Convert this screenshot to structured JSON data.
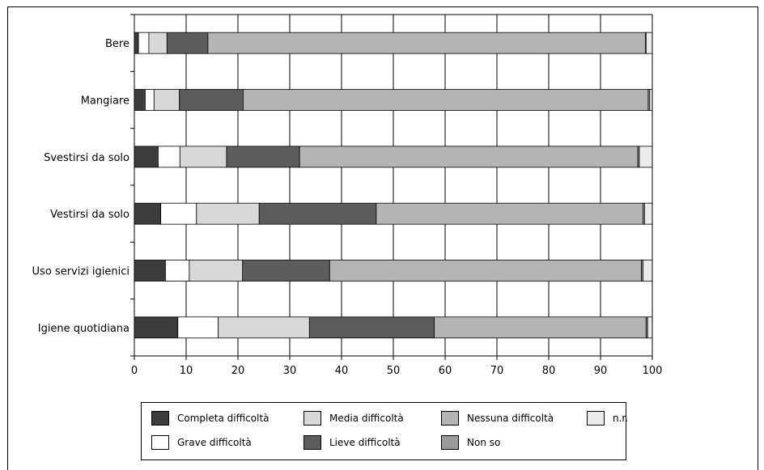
{
  "chart_data": {
    "type": "bar",
    "orientation": "horizontal",
    "stacked": true,
    "categories": [
      "Bere",
      "Mangiare",
      "Svestirsi da solo",
      "Vestirsi da solo",
      "Uso servizi igienici",
      "Igiene quotidiana"
    ],
    "series": [
      {
        "name": "Completa difficoltà",
        "color": "#3c3c3c",
        "values": [
          0.8,
          2.1,
          4.6,
          5.1,
          6.0,
          8.4
        ]
      },
      {
        "name": "Grave difficoltà",
        "color": "#ffffff",
        "values": [
          2.0,
          1.7,
          4.2,
          6.9,
          4.6,
          7.8
        ]
      },
      {
        "name": "Media difficoltà",
        "color": "#d8d8d8",
        "values": [
          3.5,
          4.9,
          9.0,
          12.1,
          10.3,
          17.6
        ]
      },
      {
        "name": "Lieve difficoltà",
        "color": "#5c5c5c",
        "values": [
          7.9,
          12.3,
          14.1,
          22.6,
          16.8,
          24.1
        ]
      },
      {
        "name": "Nessuna difficoltà",
        "color": "#b4b4b4",
        "values": [
          84.5,
          78.2,
          65.3,
          51.5,
          60.2,
          40.9
        ]
      },
      {
        "name": "Non so",
        "color": "#9a9a9a",
        "values": [
          0.1,
          0.3,
          0.3,
          0.3,
          0.3,
          0.3
        ]
      },
      {
        "name": "n.r.",
        "color": "#ececec",
        "values": [
          1.2,
          0.5,
          2.5,
          1.5,
          1.8,
          0.9
        ]
      }
    ],
    "xlim": [
      0,
      100
    ],
    "xticks": [
      "0",
      "10",
      "20",
      "30",
      "40",
      "50",
      "60",
      "70",
      "80",
      "90",
      "100"
    ],
    "grid": true,
    "legend_position": "bottom",
    "legend_rows": [
      [
        "Completa difficoltà",
        "Media difficoltà",
        "Nessuna difficoltà",
        "n.r."
      ],
      [
        "Grave difficoltà",
        "Lieve difficoltà",
        "Non so"
      ]
    ]
  }
}
